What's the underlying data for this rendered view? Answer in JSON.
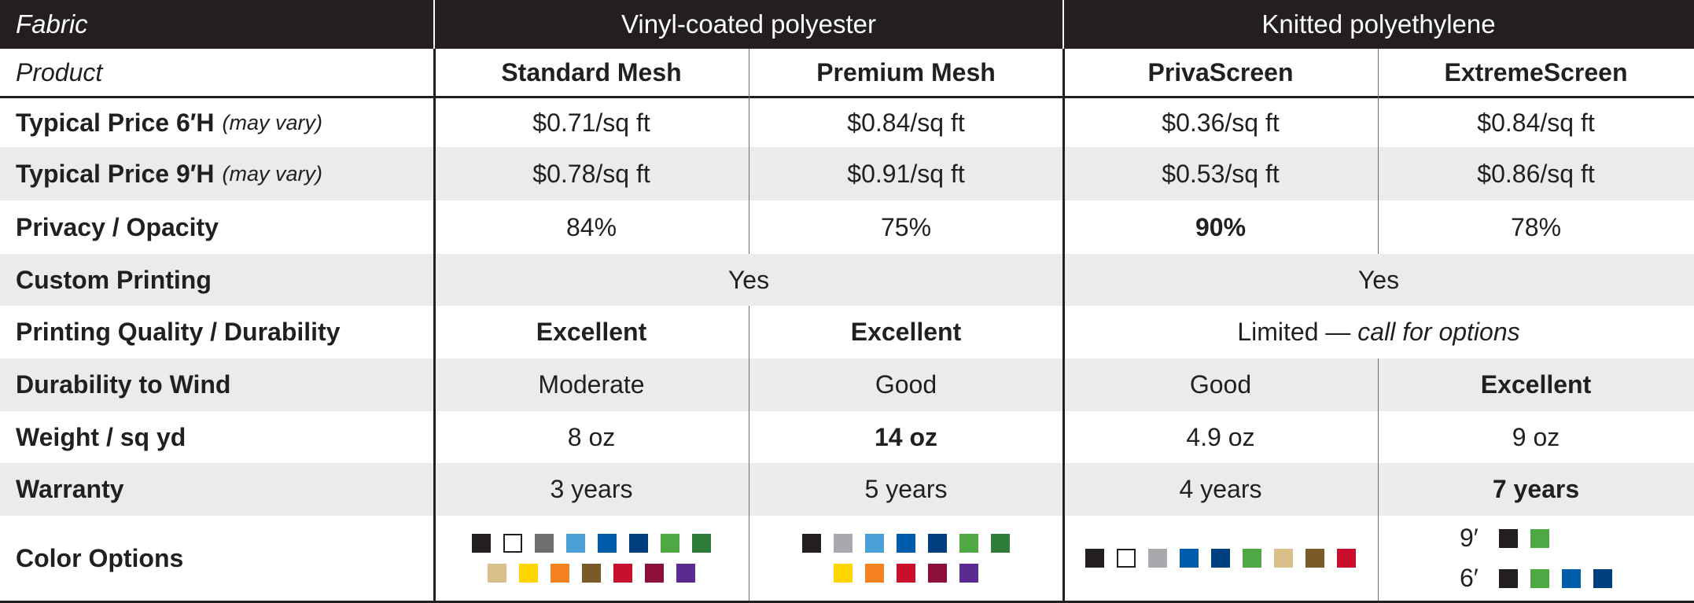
{
  "header": {
    "fabric_label": "Fabric",
    "fabric_group_1": "Vinyl-coated polyester",
    "fabric_group_2": "Knitted polyethylene"
  },
  "product_row": {
    "label": "Product",
    "products": [
      "Standard Mesh",
      "Premium Mesh",
      "PrivaScreen",
      "ExtremeScreen"
    ]
  },
  "rows": {
    "price6": {
      "label": "Typical Price 6′H",
      "note": "(may vary)",
      "values": [
        "$0.71/sq ft",
        "$0.84/sq ft",
        "$0.36/sq ft",
        "$0.84/sq ft"
      ]
    },
    "price9": {
      "label": "Typical Price 9′H",
      "note": "(may vary)",
      "values": [
        "$0.78/sq ft",
        "$0.91/sq ft",
        "$0.53/sq ft",
        "$0.86/sq ft"
      ]
    },
    "privacy": {
      "label": "Privacy / Opacity",
      "values": [
        "84%",
        "75%",
        "90%",
        "78%"
      ]
    },
    "custom_printing": {
      "label": "Custom Printing",
      "group_values": [
        "Yes",
        "Yes"
      ]
    },
    "print_quality": {
      "label": "Printing Quality / Durability",
      "values": [
        "Excellent",
        "Excellent"
      ],
      "knitted_text": "Limited — ",
      "knitted_italic": "call for options"
    },
    "wind": {
      "label": "Durability to Wind",
      "values": [
        "Moderate",
        "Good",
        "Good",
        "Excellent"
      ]
    },
    "weight": {
      "label": "Weight / sq yd",
      "values": [
        "8 oz",
        "14 oz",
        "4.9 oz",
        "9 oz"
      ]
    },
    "warranty": {
      "label": "Warranty",
      "values": [
        "3 years",
        "5 years",
        "4 years",
        "7 years"
      ]
    },
    "colors": {
      "label": "Color Options",
      "extreme_9_label": "9′",
      "extreme_6_label": "6′"
    }
  },
  "color_options": {
    "standard_mesh": [
      [
        "#231f20",
        "#ffffff",
        "#6d6e70",
        "#4a9fd4",
        "#005dab",
        "#003f7f",
        "#4fa843",
        "#2e7d3a"
      ],
      [
        "#d9c08a",
        "#ffd500",
        "#f58220",
        "#7a5a26",
        "#c8102e",
        "#8c0f3c",
        "#5b2c8f"
      ]
    ],
    "premium_mesh": [
      [
        "#231f20",
        "#a7a9ac",
        "#4a9fd4",
        "#005dab",
        "#003f7f",
        "#4fa843",
        "#2e7d3a"
      ],
      [
        "#ffd500",
        "#f58220",
        "#c8102e",
        "#8c0f3c",
        "#5b2c8f"
      ]
    ],
    "privascreen": [
      [
        "#231f20",
        "#ffffff",
        "#a7a9ac",
        "#005dab",
        "#003f7f",
        "#4fa843",
        "#d9c08a",
        "#7a5a26",
        "#c8102e"
      ]
    ],
    "extremescreen_9": [
      "#231f20",
      "#4fa843"
    ],
    "extremescreen_6": [
      "#231f20",
      "#4fa843",
      "#005dab",
      "#003f7f"
    ]
  }
}
